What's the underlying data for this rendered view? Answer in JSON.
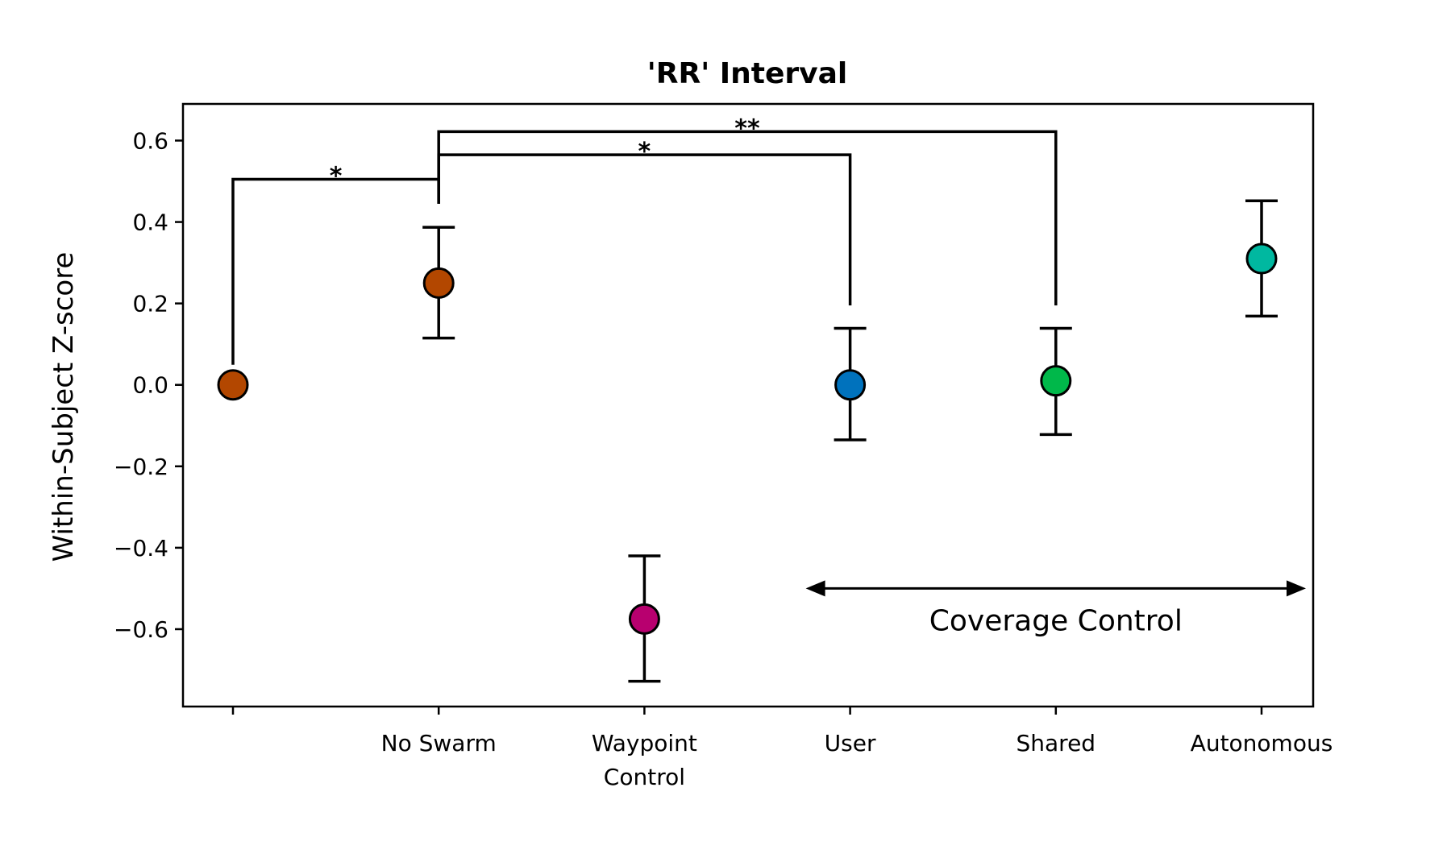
{
  "chart_data": {
    "type": "scatter",
    "title": "'RR' Interval",
    "xlabel": "",
    "ylabel": "Within-Subject Z-score",
    "ylim": [
      -0.79,
      0.69
    ],
    "yticks": [
      "0.6",
      "0.4",
      "0.2",
      "0.0",
      "−0.2",
      "−0.4",
      "−0.6"
    ],
    "ytick_values": [
      0.6,
      0.4,
      0.2,
      0.0,
      -0.2,
      -0.4,
      -0.6
    ],
    "categories": [
      "",
      "No Swarm",
      "Waypoint\nControl",
      "User",
      "Shared",
      "Autonomous"
    ],
    "points": [
      {
        "category": "",
        "y": 0.0,
        "err_low": null,
        "err_high": null,
        "color": "#b34700"
      },
      {
        "category": "No Swarm",
        "y": 0.25,
        "err_low": 0.115,
        "err_high": 0.387,
        "color": "#b34700"
      },
      {
        "category": "Waypoint Control",
        "y": -0.575,
        "err_low": -0.728,
        "err_high": -0.42,
        "color": "#b8006f"
      },
      {
        "category": "User",
        "y": 0.0,
        "err_low": -0.135,
        "err_high": 0.139,
        "color": "#0072bd"
      },
      {
        "category": "Shared",
        "y": 0.01,
        "err_low": -0.122,
        "err_high": 0.139,
        "color": "#00b84a"
      },
      {
        "category": "Autonomous",
        "y": 0.31,
        "err_low": 0.169,
        "err_high": 0.452,
        "color": "#00b8a0"
      }
    ],
    "significance": [
      {
        "from": 0,
        "to": 1,
        "label": "*",
        "level": 0.505
      },
      {
        "from": 1,
        "to": 3,
        "label": "*",
        "level": 0.565
      },
      {
        "from": 1,
        "to": 4,
        "label": "**",
        "level": 0.622
      }
    ],
    "annotation": {
      "text": "Coverage Control",
      "from_category": 3,
      "to_category": 5
    }
  }
}
